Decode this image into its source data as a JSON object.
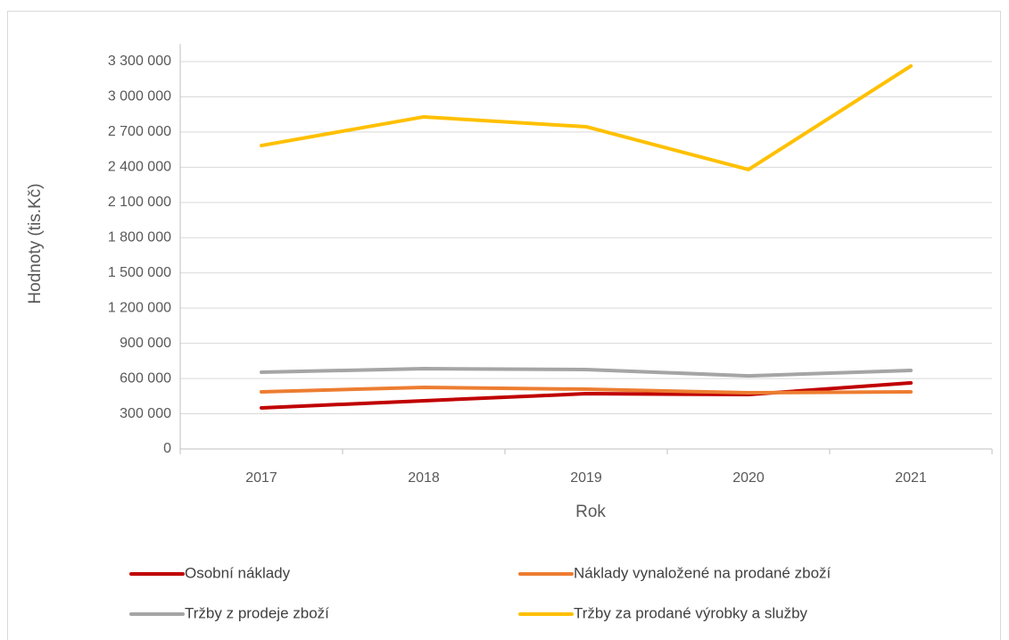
{
  "chart_data": {
    "type": "line",
    "x_label": "Rok",
    "y_label": "Hodnoty (tis.Kč)",
    "categories": [
      "2017",
      "2018",
      "2019",
      "2020",
      "2021"
    ],
    "series": [
      {
        "name": "Osobní náklady",
        "color": "#c00000",
        "values": [
          350000,
          411000,
          471000,
          464000,
          563000
        ]
      },
      {
        "name": "Náklady vynaložené na prodané zboží",
        "color": "#ed7d31",
        "values": [
          487000,
          525000,
          509000,
          479000,
          487000
        ]
      },
      {
        "name": "Tržby z prodeje zboží",
        "color": "#a5a5a5",
        "values": [
          654000,
          684000,
          677000,
          623000,
          669000
        ]
      },
      {
        "name": "Tržby za prodané výrobky a služby",
        "color": "#ffc000",
        "values": [
          2585000,
          2829000,
          2745000,
          2380000,
          3262000
        ]
      }
    ],
    "ylim": [
      0,
      3450000
    ],
    "yticks": [
      0,
      {
        "value": 300000,
        "label": "300 000"
      },
      {
        "value": 600000,
        "label": "600 000"
      },
      {
        "value": 900000,
        "label": "900 000"
      },
      {
        "value": 1200000,
        "label": "1 200 000"
      },
      {
        "value": 1500000,
        "label": "1 500 000"
      },
      {
        "value": 1800000,
        "label": "1 800 000"
      },
      {
        "value": 2100000,
        "label": "2 100 000"
      },
      {
        "value": 2400000,
        "label": "2 400 000"
      },
      {
        "value": 2700000,
        "label": "2 700 000"
      },
      {
        "value": 3000000,
        "label": "3 000 000"
      },
      {
        "value": 3300000,
        "label": "3 300 000"
      }
    ],
    "grid": true,
    "legend": "bottom"
  }
}
